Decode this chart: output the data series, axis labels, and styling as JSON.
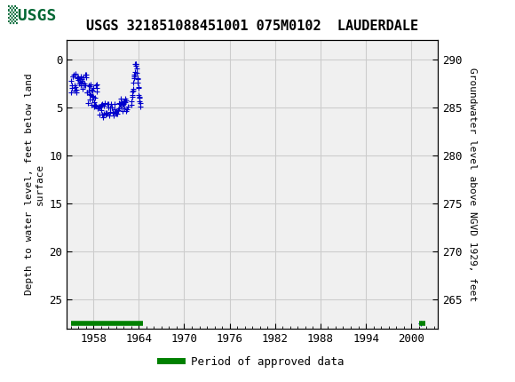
{
  "title": "USGS 321851088451001 075M0102  LAUDERDALE",
  "ylabel_left": "Depth to water level, feet below land\nsurface",
  "ylabel_right": "Groundwater level above NGVD 1929, feet",
  "ylim_left": [
    28,
    -2
  ],
  "ylim_right": [
    262,
    292
  ],
  "xlim": [
    1954.5,
    2003.5
  ],
  "xticks": [
    1958,
    1964,
    1970,
    1976,
    1982,
    1988,
    1994,
    2000
  ],
  "yticks_left": [
    0,
    5,
    10,
    15,
    20,
    25
  ],
  "yticks_right": [
    290,
    285,
    280,
    275,
    270,
    265
  ],
  "grid_color": "#cccccc",
  "plot_bg": "#f0f0f0",
  "data_color": "#0000cc",
  "approved_color": "#008000",
  "header_color": "#006633",
  "legend_label": "Period of approved data"
}
